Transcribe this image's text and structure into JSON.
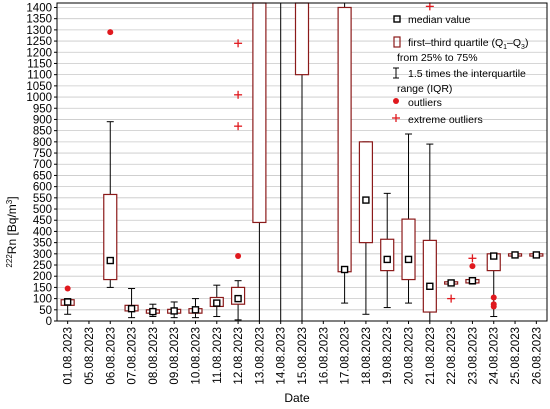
{
  "chart_data": {
    "type": "box",
    "categories": [
      "01.08.2023",
      "05.08.2023",
      "06.08.2023",
      "07.08.2023",
      "08.08.2023",
      "09.08.2023",
      "10.08.2023",
      "11.08.2023",
      "12.08.2023",
      "13.08.2023",
      "14.08.2023",
      "15.08.2023",
      "16.08.2023",
      "17.08.2023",
      "18.08.2023",
      "19.08.2023",
      "20.08.2023",
      "21.08.2023",
      "22.08.2023",
      "23.08.2023",
      "24.08.2023",
      "25.08.2023",
      "26.08.2023"
    ],
    "xlabel": "Date",
    "ylabel_base": "Rn [Bq/m",
    "ylabel_sup_mass": "222",
    "ylabel_sup_unit": "3",
    "ylabel_close": "]",
    "ylim": [
      0,
      1420
    ],
    "yticks": [
      0,
      50,
      100,
      150,
      200,
      250,
      300,
      350,
      400,
      450,
      500,
      550,
      600,
      650,
      700,
      750,
      800,
      850,
      900,
      950,
      1000,
      1050,
      1100,
      1150,
      1200,
      1250,
      1300,
      1350,
      1400
    ],
    "grid": true,
    "boxes": [
      {
        "median": 85,
        "q1": 70,
        "q3": 95,
        "wlo": 30,
        "whi": 100,
        "outliers": [
          145
        ],
        "extremes": []
      },
      null,
      {
        "median": 270,
        "q1": 185,
        "q3": 565,
        "wlo": 150,
        "whi": 890,
        "outliers": [
          1290
        ],
        "extremes": []
      },
      {
        "median": 55,
        "q1": 45,
        "q3": 70,
        "wlo": 15,
        "whi": 145,
        "outliers": [],
        "extremes": []
      },
      {
        "median": 42,
        "q1": 35,
        "q3": 50,
        "wlo": 20,
        "whi": 75,
        "outliers": [],
        "extremes": []
      },
      {
        "median": 45,
        "q1": 35,
        "q3": 52,
        "wlo": 15,
        "whi": 85,
        "outliers": [],
        "extremes": []
      },
      {
        "median": 50,
        "q1": 35,
        "q3": 55,
        "wlo": 15,
        "whi": 100,
        "outliers": [],
        "extremes": []
      },
      {
        "median": 80,
        "q1": 65,
        "q3": 105,
        "wlo": 20,
        "whi": 160,
        "outliers": [],
        "extremes": []
      },
      {
        "median": 100,
        "q1": 75,
        "q3": 150,
        "wlo": 5,
        "whi": 180,
        "outliers": [
          290
        ],
        "extremes": [
          870,
          1010,
          1240
        ]
      },
      {
        "median": null,
        "q1": 440,
        "q3": 1430,
        "wlo": 0,
        "whi": 1430,
        "outliers": [],
        "extremes": []
      },
      {
        "median": null,
        "q1": null,
        "q3": null,
        "wlo": 0,
        "whi": 1430,
        "outliers": [],
        "extremes": []
      },
      {
        "median": null,
        "q1": 1100,
        "q3": 1430,
        "wlo": 0,
        "whi": 1430,
        "outliers": [],
        "extremes": []
      },
      null,
      {
        "median": 230,
        "q1": 220,
        "q3": 1400,
        "wlo": 80,
        "whi": 1430,
        "outliers": [],
        "extremes": []
      },
      {
        "median": 540,
        "q1": 350,
        "q3": 800,
        "wlo": 30,
        "whi": 800,
        "outliers": [],
        "extremes": []
      },
      {
        "median": 275,
        "q1": 225,
        "q3": 365,
        "wlo": 60,
        "whi": 570,
        "outliers": [],
        "extremes": []
      },
      {
        "median": 275,
        "q1": 185,
        "q3": 455,
        "wlo": 80,
        "whi": 835,
        "outliers": [],
        "extremes": []
      },
      {
        "median": 155,
        "q1": 40,
        "q3": 360,
        "wlo": 0,
        "whi": 790,
        "outliers": [],
        "extremes": [
          1405
        ]
      },
      {
        "median": 170,
        "q1": 165,
        "q3": 175,
        "wlo": 165,
        "whi": 175,
        "outliers": [],
        "extremes": [
          100
        ]
      },
      {
        "median": 180,
        "q1": 170,
        "q3": 185,
        "wlo": 165,
        "whi": 185,
        "outliers": [
          245
        ],
        "extremes": [
          280
        ]
      },
      {
        "median": 290,
        "q1": 225,
        "q3": 300,
        "wlo": 20,
        "whi": 300,
        "outliers": [
          105,
          75,
          65
        ],
        "extremes": []
      },
      {
        "median": 295,
        "q1": 290,
        "q3": 300,
        "wlo": 290,
        "whi": 300,
        "outliers": [],
        "extremes": []
      },
      {
        "median": 295,
        "q1": 290,
        "q3": 300,
        "wlo": 290,
        "whi": 300,
        "outliers": [],
        "extremes": []
      }
    ],
    "legend": {
      "position": "top-right",
      "entries": [
        {
          "symbol": "median",
          "label": "median value"
        },
        {
          "symbol": "box",
          "label": "first–third quartile (Q1–Q3) from 25% to 75%"
        },
        {
          "symbol": "whisker",
          "label": "1.5 times the interquartile range (IQR)"
        },
        {
          "symbol": "outlier",
          "label": "outliers"
        },
        {
          "symbol": "extreme",
          "label": "extreme outliers"
        }
      ],
      "box_line1": "first–third quartile (Q",
      "box_sub1": "1",
      "box_dash": "–Q",
      "box_sub3": "3",
      "box_close": ")",
      "box_line2": "from 25% to 75%",
      "whisker_line1": "1.5 times the interquartile",
      "whisker_line2": "range (IQR)"
    },
    "colors": {
      "box_edge": "#8b1a1a",
      "whisker": "#000000",
      "median": "#000000",
      "outlier": "#e0191e",
      "extreme": "#e0191e",
      "grid": "#c8c8c8"
    }
  }
}
